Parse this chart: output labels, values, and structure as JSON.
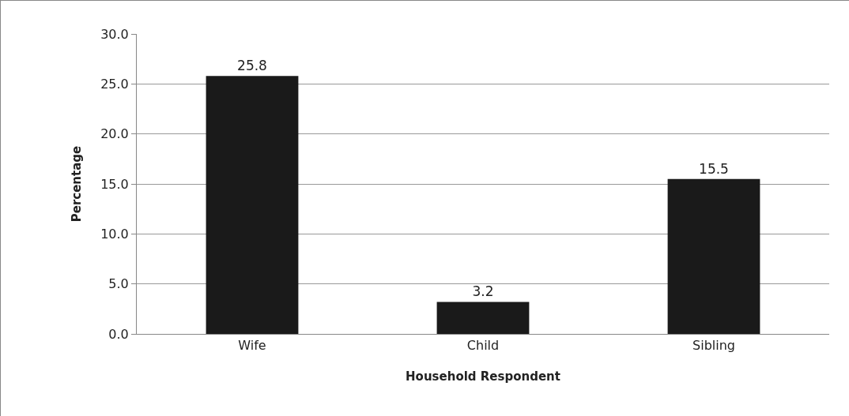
{
  "chart_data": {
    "type": "bar",
    "xlabel": "Household Respondent",
    "ylabel": "Percentage",
    "categories": [
      "Wife",
      "Child",
      "Sibling"
    ],
    "values": [
      25.8,
      3.2,
      15.5
    ],
    "color": "#1a1a1a",
    "ylim": [
      0,
      30
    ],
    "yticks": [
      {
        "value": 0,
        "label": "0.0"
      },
      {
        "value": 5,
        "label": "5.0"
      },
      {
        "value": 10,
        "label": "10.0"
      },
      {
        "value": 15,
        "label": "15.0"
      },
      {
        "value": 20,
        "label": "20.0"
      },
      {
        "value": 25,
        "label": "25.0"
      },
      {
        "value": 30,
        "label": "30.0"
      }
    ],
    "grid": "y",
    "data_labels": true
  }
}
